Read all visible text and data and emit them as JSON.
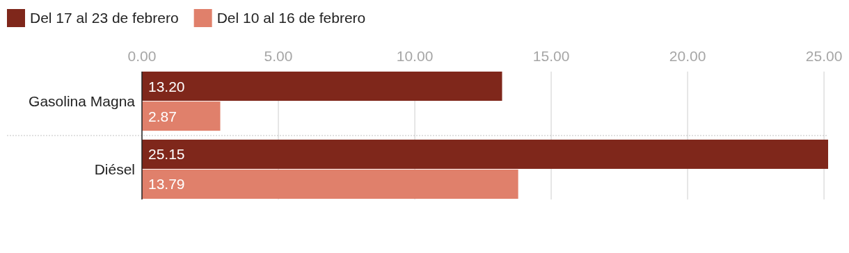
{
  "chart_data": {
    "type": "bar",
    "orientation": "horizontal",
    "categories": [
      "Gasolina Magna",
      "Diésel"
    ],
    "series": [
      {
        "name": "Del 17 al 23 de febrero",
        "color": "#7f271b",
        "values": [
          13.2,
          25.15
        ],
        "value_labels": [
          "13.20",
          "25.15"
        ]
      },
      {
        "name": "Del 10 al 16 de febrero",
        "color": "#e0806b",
        "values": [
          2.87,
          13.79
        ],
        "value_labels": [
          "2.87",
          "13.79"
        ]
      }
    ],
    "xlim": [
      0,
      25.15
    ],
    "xticks": [
      {
        "value": 0,
        "label": "0.00"
      },
      {
        "value": 5,
        "label": "5.00"
      },
      {
        "value": 10,
        "label": "10.00"
      },
      {
        "value": 15,
        "label": "15.00"
      },
      {
        "value": 20,
        "label": "20.00"
      },
      {
        "value": 25,
        "label": "25.00"
      }
    ],
    "grid": "x",
    "legend": "top left"
  }
}
